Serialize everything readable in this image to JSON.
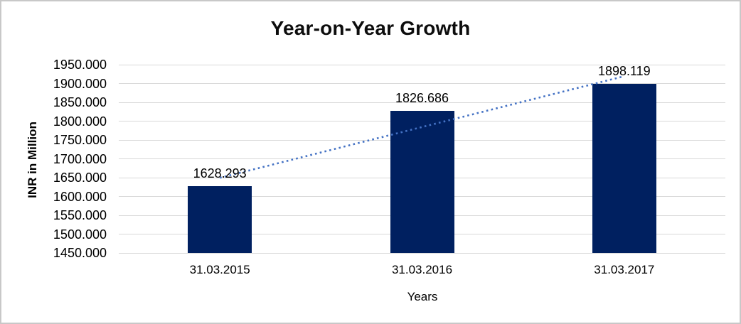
{
  "chart_data": {
    "type": "bar",
    "title": "Year-on-Year Growth",
    "categories": [
      "31.03.2015",
      "31.03.2016",
      "31.03.2017"
    ],
    "values": [
      1628.293,
      1826.686,
      1898.119
    ],
    "data_labels": [
      "1628.293",
      "1826.686",
      "1898.119"
    ],
    "xlabel": "Years",
    "ylabel": "INR in Million",
    "ylim": [
      1450,
      1950
    ],
    "ytick_step": 50,
    "ytick_labels": [
      "1950.000",
      "1900.000",
      "1850.000",
      "1800.000",
      "1750.000",
      "1700.000",
      "1650.000",
      "1600.000",
      "1550.000",
      "1500.000",
      "1450.000"
    ],
    "grid": true,
    "legend": "none",
    "trendline": {
      "type": "linear",
      "style": "dotted",
      "endpoint_values": [
        1649.453,
        1919.279
      ]
    }
  },
  "style": {
    "bar_color": "#002060",
    "trendline_color": "#4472C4",
    "gridline_color": "#D9D9D9",
    "axis_line_color": "#D9D9D9",
    "frame_border_color": "#C8C8C8",
    "text_color": "#000000",
    "title_color": "#0D0D0D"
  }
}
